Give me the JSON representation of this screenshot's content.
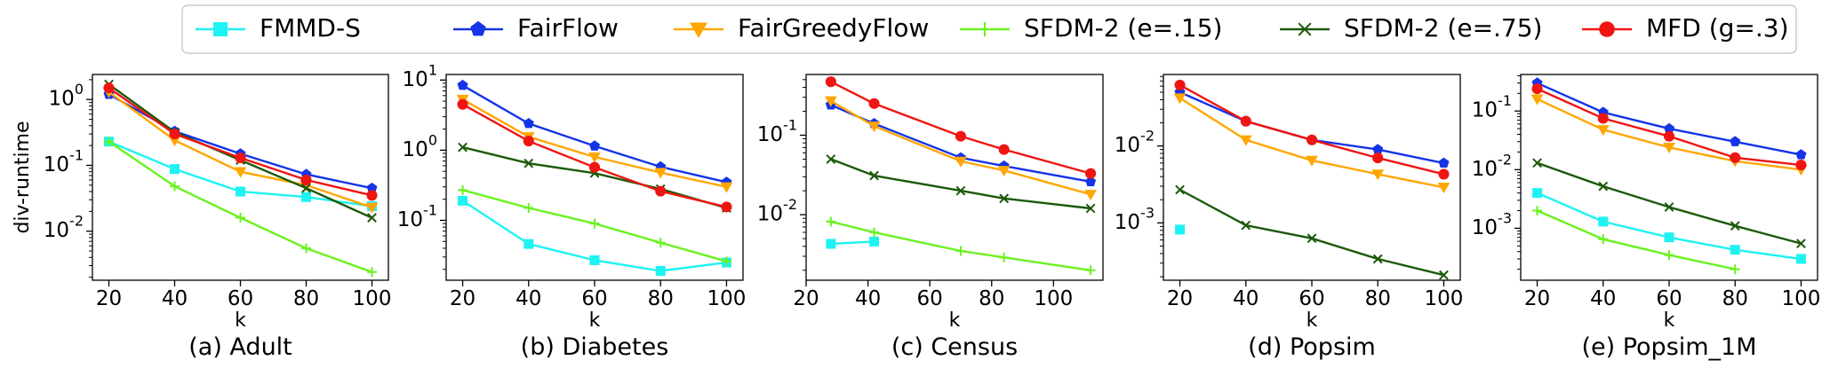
{
  "legend": {
    "placement": "top-center",
    "entries": [
      {
        "name": "FMMD-S",
        "color": "#1ff2f2",
        "marker": "square"
      },
      {
        "name": "FairFlow",
        "color": "#1434e6",
        "marker": "pentagon"
      },
      {
        "name": "FairGreedyFlow",
        "color": "#ffa600",
        "marker": "triangle-down"
      },
      {
        "name": "SFDM-2 (e=.15)",
        "color": "#6af21f",
        "marker": "plus"
      },
      {
        "name": "SFDM-2 (e=.75)",
        "color": "#1b5a08",
        "marker": "x"
      },
      {
        "name": "MFD (g=.3)",
        "color": "#ef1512",
        "marker": "circle"
      }
    ]
  },
  "chart_data": [
    {
      "type": "line",
      "caption": "(a) Adult",
      "xlabel": "k",
      "ylabel": "div-runtime",
      "yscale": "log",
      "xlim": [
        15,
        105
      ],
      "ylim": [
        0.0018,
        2.4
      ],
      "xticks": [
        20,
        40,
        60,
        80,
        100
      ],
      "yticks": [
        {
          "v": 0.01,
          "label": "10^-2"
        },
        {
          "v": 0.1,
          "label": "10^-1"
        },
        {
          "v": 1,
          "label": "10^0"
        }
      ],
      "series": [
        {
          "name": "FMMD-S",
          "x": [
            20,
            40,
            60,
            80,
            100
          ],
          "values": [
            0.23,
            0.088,
            0.04,
            0.033,
            0.024
          ]
        },
        {
          "name": "FairFlow",
          "x": [
            20,
            40,
            60,
            80,
            100
          ],
          "values": [
            1.2,
            0.33,
            0.15,
            0.073,
            0.045
          ]
        },
        {
          "name": "FairGreedyFlow",
          "x": [
            20,
            40,
            60,
            80,
            100
          ],
          "values": [
            1.3,
            0.24,
            0.08,
            0.05,
            0.023
          ]
        },
        {
          "name": "SFDM-2 (e=.15)",
          "x": [
            20,
            40,
            60,
            80,
            100
          ],
          "values": [
            0.23,
            0.048,
            0.016,
            0.0055,
            0.0024
          ]
        },
        {
          "name": "SFDM-2 (e=.75)",
          "x": [
            20,
            40,
            60,
            80,
            100
          ],
          "values": [
            1.7,
            0.32,
            0.12,
            0.045,
            0.016
          ]
        },
        {
          "name": "MFD (g=.3)",
          "x": [
            20,
            40,
            60,
            80,
            100
          ],
          "values": [
            1.5,
            0.3,
            0.13,
            0.06,
            0.035
          ]
        }
      ]
    },
    {
      "type": "line",
      "caption": "(b) Diabetes",
      "xlabel": "k",
      "ylabel": "",
      "yscale": "log",
      "xlim": [
        15,
        105
      ],
      "ylim": [
        0.014,
        12
      ],
      "xticks": [
        20,
        40,
        60,
        80,
        100
      ],
      "yticks": [
        {
          "v": 0.1,
          "label": "10^-1"
        },
        {
          "v": 1,
          "label": "10^0"
        },
        {
          "v": 10,
          "label": "10^1"
        }
      ],
      "series": [
        {
          "name": "FMMD-S",
          "x": [
            20,
            40,
            60,
            80,
            100
          ],
          "values": [
            0.19,
            0.046,
            0.027,
            0.019,
            0.025
          ]
        },
        {
          "name": "FairFlow",
          "x": [
            20,
            40,
            60,
            80,
            100
          ],
          "values": [
            8.4,
            2.4,
            1.15,
            0.58,
            0.35
          ]
        },
        {
          "name": "FairGreedyFlow",
          "x": [
            20,
            40,
            60,
            80,
            100
          ],
          "values": [
            5.3,
            1.55,
            0.8,
            0.48,
            0.3
          ]
        },
        {
          "name": "SFDM-2 (e=.15)",
          "x": [
            20,
            40,
            60,
            80,
            100
          ],
          "values": [
            0.27,
            0.15,
            0.09,
            0.048,
            0.026
          ]
        },
        {
          "name": "SFDM-2 (e=.75)",
          "x": [
            20,
            40,
            60,
            80,
            100
          ],
          "values": [
            1.1,
            0.65,
            0.47,
            0.28,
            0.15
          ]
        },
        {
          "name": "MFD (g=.3)",
          "x": [
            20,
            40,
            60,
            80,
            100
          ],
          "values": [
            4.5,
            1.35,
            0.57,
            0.26,
            0.155
          ]
        }
      ]
    },
    {
      "type": "line",
      "caption": "(c) Census",
      "xlabel": "k",
      "ylabel": "",
      "yscale": "log",
      "xlim": [
        20,
        116
      ],
      "ylim": [
        0.0015,
        0.58
      ],
      "xticks": [
        20,
        40,
        60,
        80,
        100
      ],
      "yticks": [
        {
          "v": 0.01,
          "label": "10^-2"
        },
        {
          "v": 0.1,
          "label": "10^-1"
        }
      ],
      "series": [
        {
          "name": "FMMD-S",
          "x": [
            28,
            42
          ],
          "values": [
            0.0043,
            0.0046
          ]
        },
        {
          "name": "FairFlow",
          "x": [
            28,
            42,
            70,
            84,
            112
          ],
          "values": [
            0.24,
            0.14,
            0.052,
            0.041,
            0.026
          ]
        },
        {
          "name": "FairGreedyFlow",
          "x": [
            28,
            42,
            70,
            84,
            112
          ],
          "values": [
            0.27,
            0.13,
            0.047,
            0.036,
            0.018
          ]
        },
        {
          "name": "SFDM-2 (e=.15)",
          "x": [
            28,
            42,
            70,
            84,
            112
          ],
          "values": [
            0.0082,
            0.006,
            0.0035,
            0.0029,
            0.002
          ]
        },
        {
          "name": "SFDM-2 (e=.75)",
          "x": [
            28,
            42,
            70,
            84,
            112
          ],
          "values": [
            0.05,
            0.031,
            0.02,
            0.016,
            0.012
          ]
        },
        {
          "name": "MFD (g=.3)",
          "x": [
            28,
            42,
            70,
            84,
            112
          ],
          "values": [
            0.47,
            0.25,
            0.097,
            0.066,
            0.033
          ]
        }
      ]
    },
    {
      "type": "line",
      "caption": "(d) Popsim",
      "xlabel": "k",
      "ylabel": "",
      "yscale": "log",
      "xlim": [
        15,
        105
      ],
      "ylim": [
        0.00018,
        0.085
      ],
      "xticks": [
        20,
        40,
        60,
        80,
        100
      ],
      "yticks": [
        {
          "v": 0.001,
          "label": "10^-3"
        },
        {
          "v": 0.01,
          "label": "10^-2"
        }
      ],
      "series": [
        {
          "name": "FMMD-S",
          "x": [
            20
          ],
          "values": [
            0.00082
          ]
        },
        {
          "name": "FairFlow",
          "x": [
            20,
            40,
            60,
            80,
            100
          ],
          "values": [
            0.05,
            0.021,
            0.012,
            0.009,
            0.006
          ]
        },
        {
          "name": "FairGreedyFlow",
          "x": [
            20,
            40,
            60,
            80,
            100
          ],
          "values": [
            0.042,
            0.012,
            0.0065,
            0.0043,
            0.0029
          ]
        },
        {
          "name": "SFDM-2 (e=.75)",
          "x": [
            20,
            40,
            60,
            80,
            100
          ],
          "values": [
            0.0027,
            0.00093,
            0.00063,
            0.00034,
            0.00021
          ]
        },
        {
          "name": "MFD (g=.3)",
          "x": [
            20,
            40,
            60,
            80,
            100
          ],
          "values": [
            0.062,
            0.021,
            0.012,
            0.007,
            0.0043
          ]
        }
      ]
    },
    {
      "type": "line",
      "caption": "(e) Popsim_1M",
      "xlabel": "k",
      "ylabel": "",
      "yscale": "log",
      "xlim": [
        15,
        105
      ],
      "ylim": [
        0.00013,
        0.42
      ],
      "xticks": [
        20,
        40,
        60,
        80,
        100
      ],
      "yticks": [
        {
          "v": 0.001,
          "label": "10^-3"
        },
        {
          "v": 0.01,
          "label": "10^-2"
        },
        {
          "v": 0.1,
          "label": "10^-1"
        }
      ],
      "series": [
        {
          "name": "FMMD-S",
          "x": [
            20,
            40,
            60,
            80,
            100
          ],
          "values": [
            0.004,
            0.0013,
            0.0007,
            0.00043,
            0.0003
          ]
        },
        {
          "name": "FairFlow",
          "x": [
            20,
            40,
            60,
            80,
            100
          ],
          "values": [
            0.3,
            0.095,
            0.05,
            0.03,
            0.018
          ]
        },
        {
          "name": "FairGreedyFlow",
          "x": [
            20,
            40,
            60,
            80,
            100
          ],
          "values": [
            0.16,
            0.048,
            0.024,
            0.014,
            0.01
          ]
        },
        {
          "name": "SFDM-2 (e=.15)",
          "x": [
            20,
            40,
            60,
            80
          ],
          "values": [
            0.002,
            0.00065,
            0.00035,
            0.0002
          ]
        },
        {
          "name": "SFDM-2 (e=.75)",
          "x": [
            20,
            40,
            60,
            80,
            100
          ],
          "values": [
            0.013,
            0.0052,
            0.0023,
            0.0011,
            0.00055
          ]
        },
        {
          "name": "MFD (g=.3)",
          "x": [
            20,
            40,
            60,
            80,
            100
          ],
          "values": [
            0.24,
            0.075,
            0.037,
            0.016,
            0.012
          ]
        }
      ]
    }
  ]
}
